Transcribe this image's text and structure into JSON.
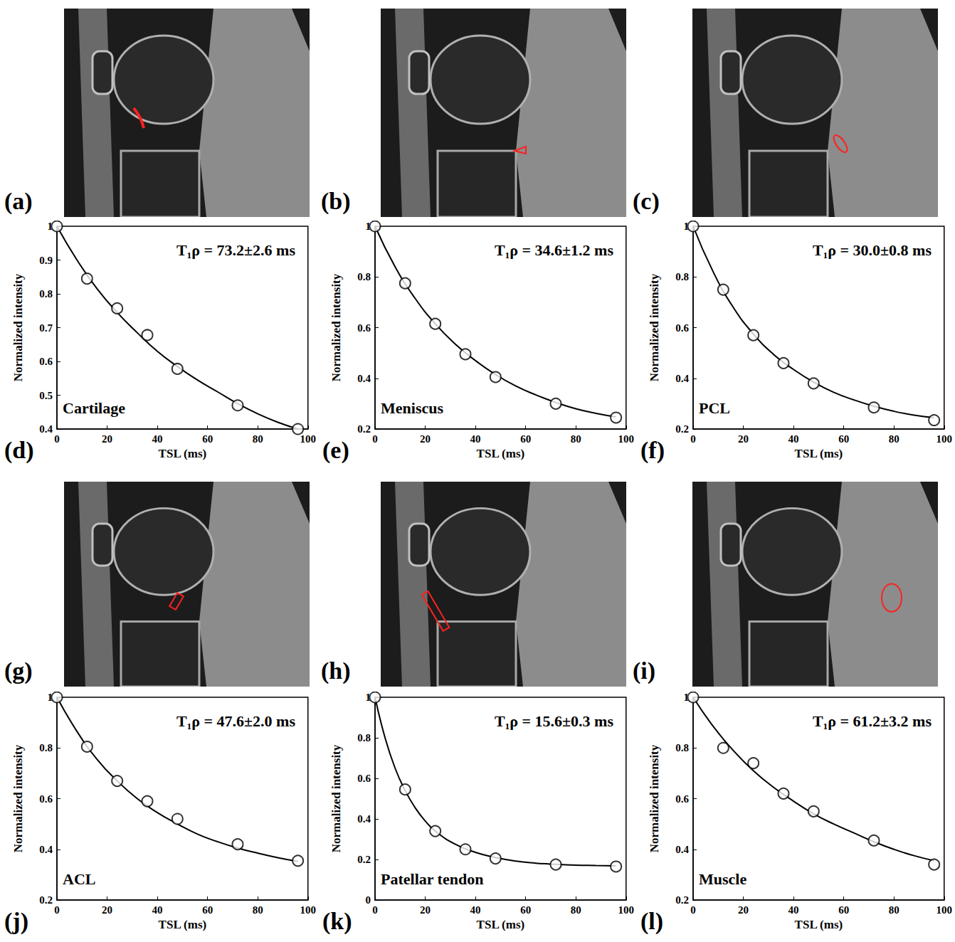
{
  "images": [
    {
      "letter": "(a)"
    },
    {
      "letter": "(b)"
    },
    {
      "letter": "(c)"
    },
    {
      "letter": "(g)"
    },
    {
      "letter": "(h)"
    },
    {
      "letter": "(i)"
    }
  ],
  "chart_data": [
    {
      "type": "scatter",
      "letter": "(d)",
      "label": "Cartilage",
      "annotation": "T₁ρ = 73.2±2.6 ms",
      "x_label": "TSL (ms)",
      "y_label": "Normalized intensity",
      "xlim": [
        0,
        100
      ],
      "xticks": [
        0,
        20,
        40,
        60,
        80,
        100
      ],
      "ylim": [
        0.4,
        1
      ],
      "yticks": [
        0.4,
        0.5,
        0.6,
        0.7,
        0.8,
        0.9,
        1
      ],
      "grid": false,
      "series": [
        {
          "type": "scatter",
          "marker": "circle",
          "color": "#000000",
          "x": [
            0,
            12,
            24,
            36,
            48,
            72,
            96
          ],
          "values": [
            1,
            0.845,
            0.757,
            0.678,
            0.578,
            0.47,
            0.4
          ]
        },
        {
          "type": "line",
          "line_style": "solid",
          "color": "#000000",
          "x": [
            0,
            8,
            16,
            24,
            32,
            40,
            48,
            56,
            64,
            72,
            80,
            88,
            96
          ],
          "values": [
            1,
            0.9,
            0.815,
            0.745,
            0.685,
            0.63,
            0.585,
            0.545,
            0.51,
            0.475,
            0.445,
            0.42,
            0.4
          ]
        }
      ]
    },
    {
      "type": "scatter",
      "letter": "(e)",
      "label": "Meniscus",
      "annotation": "T₁ρ = 34.6±1.2 ms",
      "x_label": "TSL (ms)",
      "y_label": "Normalized intensity",
      "xlim": [
        0,
        100
      ],
      "xticks": [
        0,
        20,
        40,
        60,
        80,
        100
      ],
      "ylim": [
        0.2,
        1
      ],
      "yticks": [
        0.2,
        0.4,
        0.6,
        0.8,
        1
      ],
      "grid": false,
      "series": [
        {
          "type": "scatter",
          "marker": "circle",
          "color": "#000000",
          "x": [
            0,
            12,
            24,
            36,
            48,
            72,
            96
          ],
          "values": [
            1,
            0.775,
            0.615,
            0.495,
            0.405,
            0.3,
            0.245
          ]
        },
        {
          "type": "line",
          "line_style": "solid",
          "color": "#000000",
          "x": [
            0,
            8,
            16,
            24,
            32,
            40,
            48,
            56,
            64,
            72,
            80,
            88,
            96
          ],
          "values": [
            1,
            0.84,
            0.715,
            0.615,
            0.535,
            0.47,
            0.415,
            0.37,
            0.335,
            0.305,
            0.28,
            0.262,
            0.248
          ]
        }
      ]
    },
    {
      "type": "scatter",
      "letter": "(f)",
      "label": "PCL",
      "annotation": "T₁ρ = 30.0±0.8 ms",
      "x_label": "TSL (ms)",
      "y_label": "Normalized intensity",
      "xlim": [
        0,
        100
      ],
      "xticks": [
        0,
        20,
        40,
        60,
        80,
        100
      ],
      "ylim": [
        0.2,
        1
      ],
      "yticks": [
        0.2,
        0.4,
        0.6,
        0.8,
        1
      ],
      "grid": false,
      "series": [
        {
          "type": "scatter",
          "marker": "circle",
          "color": "#000000",
          "x": [
            0,
            12,
            24,
            36,
            48,
            72,
            96
          ],
          "values": [
            1,
            0.75,
            0.57,
            0.46,
            0.38,
            0.285,
            0.235
          ]
        },
        {
          "type": "line",
          "line_style": "solid",
          "color": "#000000",
          "x": [
            0,
            8,
            16,
            24,
            32,
            40,
            48,
            56,
            64,
            72,
            80,
            88,
            96
          ],
          "values": [
            1,
            0.82,
            0.68,
            0.575,
            0.495,
            0.435,
            0.385,
            0.345,
            0.315,
            0.29,
            0.27,
            0.255,
            0.245
          ]
        }
      ]
    },
    {
      "type": "scatter",
      "letter": "(j)",
      "label": "ACL",
      "annotation": "T₁ρ = 47.6±2.0 ms",
      "x_label": "TSL (ms)",
      "y_label": "Normalized intensity",
      "xlim": [
        0,
        100
      ],
      "xticks": [
        0,
        20,
        40,
        60,
        80,
        100
      ],
      "ylim": [
        0.2,
        1
      ],
      "yticks": [
        0.2,
        0.4,
        0.6,
        0.8,
        1
      ],
      "grid": false,
      "series": [
        {
          "type": "scatter",
          "marker": "circle",
          "color": "#000000",
          "x": [
            0,
            12,
            24,
            36,
            48,
            72,
            96
          ],
          "values": [
            1,
            0.805,
            0.67,
            0.59,
            0.52,
            0.42,
            0.355
          ]
        },
        {
          "type": "line",
          "line_style": "solid",
          "color": "#000000",
          "x": [
            0,
            8,
            16,
            24,
            32,
            40,
            48,
            56,
            64,
            72,
            80,
            88,
            96
          ],
          "values": [
            1,
            0.865,
            0.755,
            0.67,
            0.6,
            0.545,
            0.5,
            0.46,
            0.43,
            0.405,
            0.385,
            0.367,
            0.352
          ]
        }
      ]
    },
    {
      "type": "scatter",
      "letter": "(k)",
      "label": "Patellar tendon",
      "annotation": "T₁ρ = 15.6±0.3 ms",
      "x_label": "TSL (ms)",
      "y_label": "Normalized intensity",
      "xlim": [
        0,
        100
      ],
      "xticks": [
        0,
        20,
        40,
        60,
        80,
        100
      ],
      "ylim": [
        0,
        1
      ],
      "yticks": [
        0,
        0.2,
        0.4,
        0.6,
        0.8,
        1
      ],
      "grid": false,
      "series": [
        {
          "type": "scatter",
          "marker": "circle",
          "color": "#000000",
          "x": [
            0,
            12,
            24,
            36,
            48,
            72,
            96
          ],
          "values": [
            1,
            0.545,
            0.34,
            0.25,
            0.205,
            0.175,
            0.165
          ]
        },
        {
          "type": "line",
          "line_style": "solid",
          "color": "#000000",
          "x": [
            0,
            4,
            8,
            12,
            16,
            20,
            24,
            32,
            40,
            48,
            56,
            64,
            72,
            80,
            88,
            96
          ],
          "values": [
            1,
            0.8,
            0.65,
            0.54,
            0.455,
            0.39,
            0.34,
            0.275,
            0.235,
            0.21,
            0.192,
            0.182,
            0.176,
            0.172,
            0.17,
            0.168
          ]
        }
      ]
    },
    {
      "type": "scatter",
      "letter": "(l)",
      "label": "Muscle",
      "annotation": "T₁ρ = 61.2±3.2 ms",
      "x_label": "TSL (ms)",
      "y_label": "Normalized intensity",
      "xlim": [
        0,
        100
      ],
      "xticks": [
        0,
        20,
        40,
        60,
        80,
        100
      ],
      "ylim": [
        0.2,
        1
      ],
      "yticks": [
        0.2,
        0.4,
        0.6,
        0.8,
        1
      ],
      "grid": false,
      "series": [
        {
          "type": "scatter",
          "marker": "circle",
          "color": "#000000",
          "x": [
            0,
            12,
            24,
            36,
            48,
            72,
            96
          ],
          "values": [
            1,
            0.8,
            0.74,
            0.62,
            0.55,
            0.435,
            0.34
          ]
        },
        {
          "type": "line",
          "line_style": "solid",
          "color": "#000000",
          "x": [
            0,
            8,
            16,
            24,
            32,
            40,
            48,
            56,
            64,
            72,
            80,
            88,
            96
          ],
          "values": [
            1,
            0.885,
            0.79,
            0.71,
            0.645,
            0.59,
            0.54,
            0.5,
            0.465,
            0.43,
            0.4,
            0.375,
            0.355
          ]
        }
      ]
    }
  ]
}
